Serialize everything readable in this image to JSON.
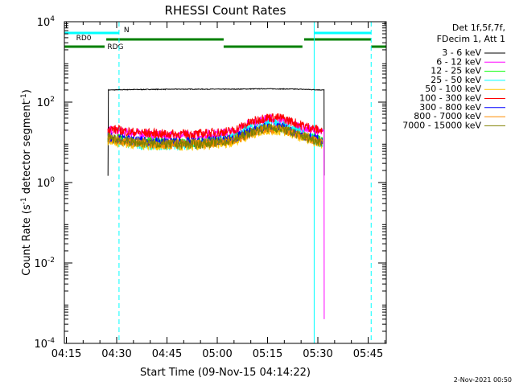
{
  "chart_data": {
    "type": "line",
    "title": "RHESSI Count Rates",
    "xlabel": "Start Time (09-Nov-15 04:14:22)",
    "ylabel_main": "Count Rate (s",
    "ylabel_sup1": "-1",
    "ylabel_mid": " detector segment",
    "ylabel_sup2": "-1",
    "ylabel_end": ")",
    "yscale": "log",
    "ylim": [
      0.0001,
      10000
    ],
    "xlim_minutes": [
      0,
      96
    ],
    "x_ticks": [
      {
        "label": "04:15",
        "min": 0.6
      },
      {
        "label": "04:30",
        "min": 15.6
      },
      {
        "label": "04:45",
        "min": 30.6
      },
      {
        "label": "05:00",
        "min": 45.6
      },
      {
        "label": "05:15",
        "min": 60.6
      },
      {
        "label": "05:30",
        "min": 75.6
      },
      {
        "label": "05:45",
        "min": 90.6
      }
    ],
    "y_ticks": [
      {
        "base": "10",
        "exp": "4",
        "value": 10000
      },
      {
        "base": "10",
        "exp": "2",
        "value": 100
      },
      {
        "base": "10",
        "exp": "0",
        "value": 1
      },
      {
        "base": "10",
        "exp": "-2",
        "value": 0.01
      },
      {
        "base": "10",
        "exp": "-4",
        "value": 0.0001
      }
    ],
    "legend": {
      "placement": "right",
      "header": [
        "Det 1f,5f,7f,",
        "FDecim 1, Att 1"
      ]
    },
    "series": [
      {
        "name": "3 - 6 keV",
        "color": "#000000",
        "x": [
          13,
          13,
          20,
          35,
          50,
          60,
          70,
          77.5,
          77.5
        ],
        "y": [
          1.5,
          200,
          205,
          210,
          210,
          215,
          210,
          200,
          1.5
        ]
      },
      {
        "name": "6 - 12 keV",
        "color": "#ff00ff",
        "x": [
          13,
          20,
          30,
          40,
          50,
          55,
          60,
          65,
          70,
          77,
          77.5,
          77.5
        ],
        "y": [
          20,
          17,
          15,
          15,
          18,
          28,
          38,
          36,
          25,
          17,
          17,
          0.0004
        ]
      },
      {
        "name": "12 - 25 keV",
        "color": "#00ff00",
        "x": [
          13,
          20,
          30,
          40,
          50,
          55,
          60,
          65,
          70,
          77
        ],
        "y": [
          13,
          11,
          10,
          10,
          12,
          18,
          24,
          22,
          16,
          11
        ]
      },
      {
        "name": "25 - 50 keV",
        "color": "#00ffff",
        "x": [
          13,
          20,
          30,
          40,
          50,
          55,
          60,
          65,
          70,
          77
        ],
        "y": [
          12,
          9,
          8,
          9,
          13,
          22,
          30,
          28,
          18,
          9
        ]
      },
      {
        "name": "50 - 100 keV",
        "color": "#ffc800",
        "x": [
          13,
          20,
          30,
          40,
          50,
          55,
          60,
          65,
          70,
          77
        ],
        "y": [
          11,
          9,
          8,
          8,
          10,
          15,
          20,
          19,
          14,
          9
        ]
      },
      {
        "name": "100 - 300 keV",
        "color": "#ff0000",
        "x": [
          13,
          20,
          30,
          40,
          50,
          55,
          60,
          65,
          70,
          77
        ],
        "y": [
          22,
          18,
          16,
          16,
          19,
          30,
          42,
          40,
          28,
          19
        ]
      },
      {
        "name": "300 - 800 keV",
        "color": "#0000ff",
        "x": [
          13,
          20,
          30,
          40,
          50,
          55,
          60,
          65,
          70,
          77
        ],
        "y": [
          14,
          11,
          10,
          10,
          12,
          18,
          24,
          23,
          16,
          11
        ]
      },
      {
        "name": "800 - 7000 keV",
        "color": "#ff8c00",
        "x": [
          13,
          20,
          30,
          40,
          50,
          55,
          60,
          65,
          70,
          77
        ],
        "y": [
          12,
          10,
          9,
          9,
          11,
          16,
          22,
          21,
          15,
          10
        ]
      },
      {
        "name": "7000 - 15000 keV",
        "color": "#808000",
        "x": [
          13,
          20,
          30,
          40,
          50,
          55,
          60,
          65,
          70,
          77
        ],
        "y": [
          13,
          10,
          9,
          9,
          11,
          17,
          23,
          22,
          15,
          10
        ]
      }
    ],
    "vertical_lines": [
      {
        "min": 0,
        "color": "#00ffff",
        "style": "solid"
      },
      {
        "min": 16.3,
        "color": "#00ffff",
        "style": "dashed"
      },
      {
        "min": 74.5,
        "color": "#00ffff",
        "style": "solid"
      },
      {
        "min": 91.5,
        "color": "#00ffff",
        "style": "dashed"
      }
    ],
    "flag_bars": [
      {
        "label": "N",
        "color": "#00ffff",
        "level": 1,
        "segments": [
          [
            0,
            16.3
          ],
          [
            74.5,
            91.5
          ]
        ]
      },
      {
        "label": "RD0",
        "color": "#008000",
        "level": 2,
        "segments": [
          [
            12.5,
            47.5
          ],
          [
            71.5,
            91.5
          ]
        ]
      },
      {
        "label": "RDG",
        "color": "#008000",
        "level": 3,
        "segments": [
          [
            0,
            12
          ],
          [
            47.5,
            71
          ],
          [
            91.5,
            96
          ]
        ]
      }
    ],
    "timestamp": "2-Nov-2021 00:50"
  }
}
